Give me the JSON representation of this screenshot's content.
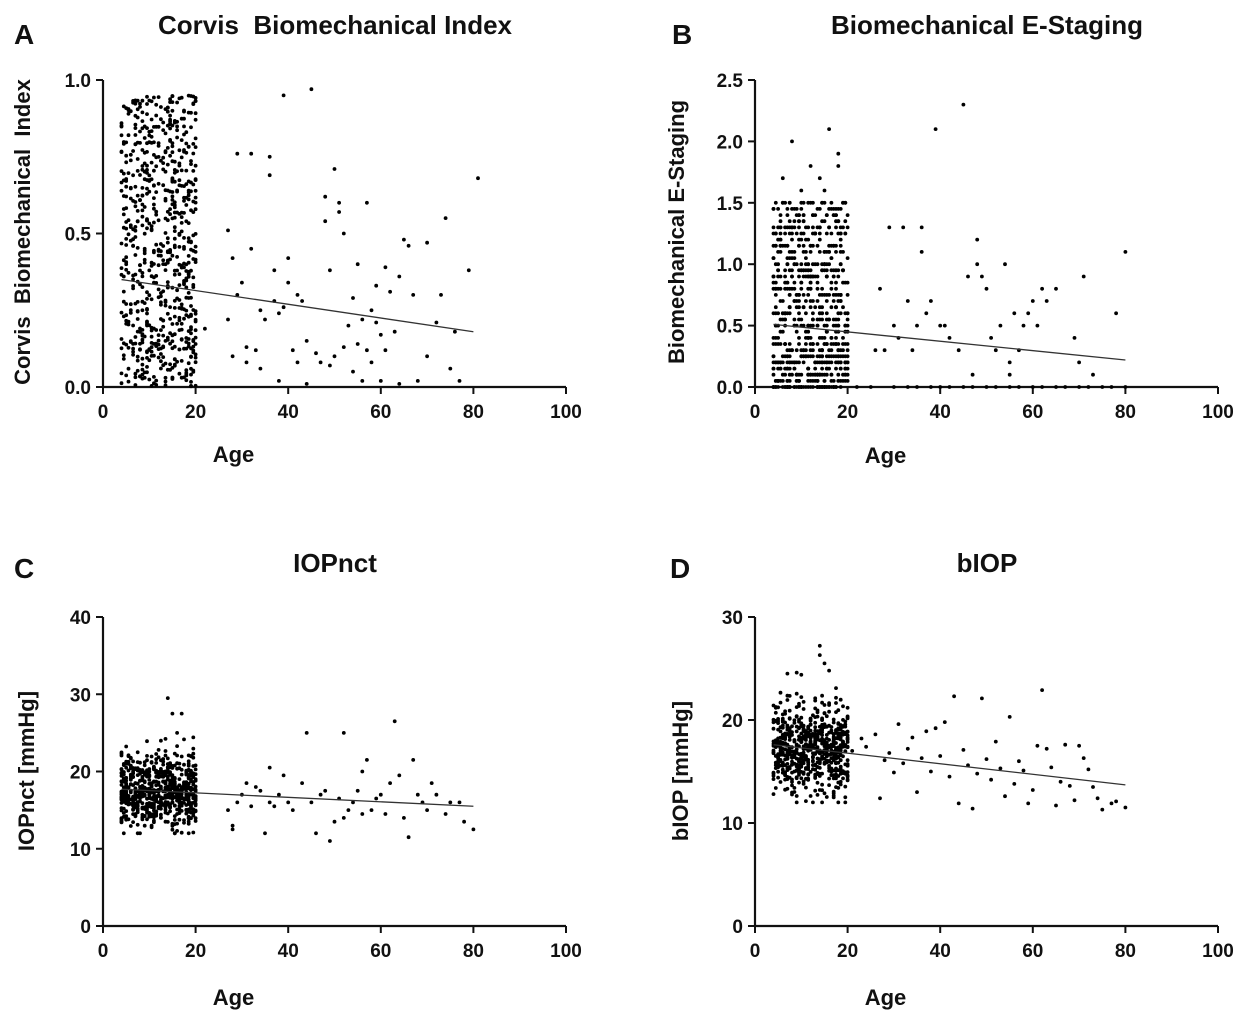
{
  "figure": {
    "panels": [
      {
        "letter": "A",
        "title": "Corvis  Biomechanical Index"
      },
      {
        "letter": "B",
        "title": "Biomechanical E-Staging"
      },
      {
        "letter": "C",
        "title": "IOPnct"
      },
      {
        "letter": "D",
        "title": "bIOP"
      }
    ]
  },
  "chart_data": [
    {
      "type": "scatter",
      "panel": "A",
      "title": "Corvis  Biomechanical Index",
      "xlabel": "Age",
      "ylabel": "Corvis  Biomechanical  Index",
      "xlim": [
        0,
        100
      ],
      "ylim": [
        0,
        1.0
      ],
      "xticks": [
        0,
        20,
        40,
        60,
        80,
        100
      ],
      "xtick_labels": [
        "0",
        "20",
        "40",
        "60",
        "80",
        "100"
      ],
      "yticks": [
        0,
        0.5,
        1.0
      ],
      "ytick_labels": [
        "0.0",
        "0.5",
        "1.0"
      ],
      "grid": false,
      "trendline": {
        "x": [
          4,
          80
        ],
        "y": [
          0.35,
          0.18
        ]
      },
      "dense_cluster": {
        "x_range": [
          4,
          20
        ],
        "y_range": [
          0.0,
          0.95
        ],
        "count": 700,
        "distribution": "uniform"
      },
      "points": [
        [
          22,
          0.19
        ],
        [
          27,
          0.22
        ],
        [
          27,
          0.51
        ],
        [
          28,
          0.42
        ],
        [
          28,
          0.1
        ],
        [
          29,
          0.76
        ],
        [
          29,
          0.3
        ],
        [
          30,
          0.34
        ],
        [
          31,
          0.13
        ],
        [
          31,
          0.08
        ],
        [
          32,
          0.45
        ],
        [
          32,
          0.76
        ],
        [
          33,
          0.12
        ],
        [
          34,
          0.25
        ],
        [
          34,
          0.06
        ],
        [
          35,
          0.22
        ],
        [
          36,
          0.75
        ],
        [
          36,
          0.69
        ],
        [
          37,
          0.38
        ],
        [
          37,
          0.28
        ],
        [
          38,
          0.24
        ],
        [
          38,
          0.02
        ],
        [
          39,
          0.95
        ],
        [
          39,
          0.26
        ],
        [
          40,
          0.42
        ],
        [
          40,
          0.34
        ],
        [
          41,
          0.12
        ],
        [
          42,
          0.3
        ],
        [
          42,
          0.08
        ],
        [
          43,
          0.28
        ],
        [
          44,
          0.15
        ],
        [
          44,
          0.01
        ],
        [
          45,
          0.97
        ],
        [
          46,
          0.11
        ],
        [
          47,
          0.08
        ],
        [
          48,
          0.54
        ],
        [
          48,
          0.62
        ],
        [
          49,
          0.07
        ],
        [
          49,
          0.38
        ],
        [
          50,
          0.71
        ],
        [
          50,
          0.1
        ],
        [
          51,
          0.57
        ],
        [
          51,
          0.6
        ],
        [
          52,
          0.13
        ],
        [
          52,
          0.5
        ],
        [
          53,
          0.2
        ],
        [
          54,
          0.29
        ],
        [
          54,
          0.05
        ],
        [
          55,
          0.14
        ],
        [
          55,
          0.4
        ],
        [
          56,
          0.22
        ],
        [
          56,
          0.02
        ],
        [
          57,
          0.6
        ],
        [
          57,
          0.12
        ],
        [
          58,
          0.08
        ],
        [
          58,
          0.25
        ],
        [
          59,
          0.21
        ],
        [
          59,
          0.33
        ],
        [
          60,
          0.02
        ],
        [
          60,
          0.17
        ],
        [
          61,
          0.39
        ],
        [
          61,
          0.12
        ],
        [
          62,
          0.31
        ],
        [
          63,
          0.18
        ],
        [
          64,
          0.36
        ],
        [
          64,
          0.01
        ],
        [
          65,
          0.48
        ],
        [
          66,
          0.46
        ],
        [
          67,
          0.3
        ],
        [
          68,
          0.02
        ],
        [
          70,
          0.47
        ],
        [
          70,
          0.1
        ],
        [
          72,
          0.21
        ],
        [
          73,
          0.3
        ],
        [
          74,
          0.55
        ],
        [
          75,
          0.06
        ],
        [
          76,
          0.18
        ],
        [
          77,
          0.02
        ],
        [
          79,
          0.38
        ],
        [
          81,
          0.68
        ]
      ]
    },
    {
      "type": "scatter",
      "panel": "B",
      "title": "Biomechanical E-Staging",
      "xlabel": "Age",
      "ylabel": "Biomechanical E-Staging",
      "xlim": [
        0,
        100
      ],
      "ylim": [
        0,
        2.5
      ],
      "xticks": [
        0,
        20,
        40,
        60,
        80,
        100
      ],
      "xtick_labels": [
        "0",
        "20",
        "40",
        "60",
        "80",
        "100"
      ],
      "yticks": [
        0,
        0.5,
        1.0,
        1.5,
        2.0,
        2.5
      ],
      "ytick_labels": [
        "0.0",
        "0.5",
        "1.0",
        "1.5",
        "2.0",
        "2.5"
      ],
      "grid": false,
      "trendline": {
        "x": [
          4,
          80
        ],
        "y": [
          0.51,
          0.22
        ]
      },
      "dense_cluster": {
        "x_range": [
          4,
          20
        ],
        "y_range": [
          0.0,
          1.5
        ],
        "count": 700,
        "distribution": "lattice",
        "y_step": 0.05
      },
      "points": [
        [
          8,
          2.0
        ],
        [
          16,
          2.1
        ],
        [
          12,
          1.8
        ],
        [
          14,
          1.7
        ],
        [
          18,
          1.9
        ],
        [
          10,
          1.6
        ],
        [
          6,
          1.7
        ],
        [
          7,
          1.4
        ],
        [
          15,
          1.6
        ],
        [
          18,
          1.8
        ],
        [
          26,
          0.3
        ],
        [
          27,
          0.8
        ],
        [
          28,
          0.3
        ],
        [
          29,
          1.3
        ],
        [
          30,
          0.5
        ],
        [
          31,
          0.4
        ],
        [
          32,
          1.3
        ],
        [
          33,
          0.7
        ],
        [
          34,
          0.3
        ],
        [
          35,
          0.5
        ],
        [
          36,
          1.3
        ],
        [
          36,
          1.1
        ],
        [
          37,
          0.6
        ],
        [
          38,
          0.7
        ],
        [
          39,
          2.1
        ],
        [
          40,
          0.5
        ],
        [
          41,
          0.5
        ],
        [
          42,
          0.4
        ],
        [
          44,
          0.3
        ],
        [
          45,
          2.3
        ],
        [
          46,
          0.9
        ],
        [
          47,
          0.1
        ],
        [
          48,
          1.0
        ],
        [
          48,
          1.2
        ],
        [
          49,
          0.9
        ],
        [
          50,
          0.8
        ],
        [
          51,
          0.4
        ],
        [
          52,
          0.3
        ],
        [
          53,
          0.5
        ],
        [
          54,
          1.0
        ],
        [
          55,
          0.2
        ],
        [
          55,
          0.1
        ],
        [
          56,
          0.6
        ],
        [
          57,
          0.3
        ],
        [
          58,
          0.5
        ],
        [
          59,
          0.6
        ],
        [
          60,
          0.7
        ],
        [
          61,
          0.5
        ],
        [
          62,
          0.8
        ],
        [
          63,
          0.7
        ],
        [
          65,
          0.8
        ],
        [
          69,
          0.4
        ],
        [
          70,
          0.2
        ],
        [
          71,
          0.9
        ],
        [
          73,
          0.1
        ],
        [
          78,
          0.6
        ],
        [
          80,
          1.1
        ],
        [
          22,
          0
        ],
        [
          25,
          0
        ],
        [
          30,
          0
        ],
        [
          33,
          0
        ],
        [
          35,
          0
        ],
        [
          38,
          0
        ],
        [
          40,
          0
        ],
        [
          42,
          0
        ],
        [
          45,
          0
        ],
        [
          47,
          0
        ],
        [
          50,
          0
        ],
        [
          52,
          0
        ],
        [
          55,
          0
        ],
        [
          57,
          0
        ],
        [
          60,
          0
        ],
        [
          62,
          0
        ],
        [
          65,
          0
        ],
        [
          67,
          0
        ],
        [
          70,
          0
        ],
        [
          72,
          0
        ],
        [
          75,
          0
        ],
        [
          77,
          0
        ],
        [
          80,
          0
        ]
      ]
    },
    {
      "type": "scatter",
      "panel": "C",
      "title": "IOPnct",
      "xlabel": "Age",
      "ylabel": "IOPnct [mmHg]",
      "xlim": [
        0,
        100
      ],
      "ylim": [
        0,
        40
      ],
      "xticks": [
        0,
        20,
        40,
        60,
        80,
        100
      ],
      "xtick_labels": [
        "0",
        "20",
        "40",
        "60",
        "80",
        "100"
      ],
      "yticks": [
        0,
        10,
        20,
        30,
        40
      ],
      "ytick_labels": [
        "0",
        "10",
        "20",
        "30",
        "40"
      ],
      "grid": false,
      "trendline": {
        "x": [
          4,
          80
        ],
        "y": [
          17.7,
          15.5
        ]
      },
      "dense_cluster": {
        "x_range": [
          4,
          20
        ],
        "y_range": [
          12,
          25
        ],
        "count": 700,
        "distribution": "normal",
        "y_mean": 17.5,
        "y_sd": 2.3
      },
      "points": [
        [
          14,
          29.5
        ],
        [
          15,
          27.5
        ],
        [
          17,
          27.5
        ],
        [
          20,
          19
        ],
        [
          27,
          15
        ],
        [
          28,
          12.5
        ],
        [
          28,
          13
        ],
        [
          29,
          16
        ],
        [
          30,
          17
        ],
        [
          31,
          18.5
        ],
        [
          32,
          15.5
        ],
        [
          33,
          18
        ],
        [
          34,
          17.5
        ],
        [
          35,
          12
        ],
        [
          36,
          20.5
        ],
        [
          36,
          16
        ],
        [
          37,
          15.5
        ],
        [
          38,
          17
        ],
        [
          39,
          19.5
        ],
        [
          40,
          16
        ],
        [
          41,
          15
        ],
        [
          43,
          18.5
        ],
        [
          44,
          25
        ],
        [
          45,
          16
        ],
        [
          46,
          12
        ],
        [
          47,
          17
        ],
        [
          48,
          17.5
        ],
        [
          49,
          11
        ],
        [
          50,
          13.5
        ],
        [
          51,
          16.5
        ],
        [
          52,
          25
        ],
        [
          52,
          14
        ],
        [
          53,
          15
        ],
        [
          54,
          16
        ],
        [
          55,
          17.5
        ],
        [
          56,
          20
        ],
        [
          56,
          14.5
        ],
        [
          57,
          21.5
        ],
        [
          58,
          15
        ],
        [
          59,
          16.5
        ],
        [
          60,
          17
        ],
        [
          61,
          14.5
        ],
        [
          62,
          18.5
        ],
        [
          63,
          26.5
        ],
        [
          64,
          19.5
        ],
        [
          65,
          14
        ],
        [
          66,
          11.5
        ],
        [
          67,
          21.5
        ],
        [
          68,
          17
        ],
        [
          69,
          16
        ],
        [
          70,
          15
        ],
        [
          71,
          18.5
        ],
        [
          72,
          17
        ],
        [
          74,
          14.5
        ],
        [
          75,
          16
        ],
        [
          77,
          16
        ],
        [
          78,
          13.5
        ],
        [
          80,
          12.5
        ]
      ]
    },
    {
      "type": "scatter",
      "panel": "D",
      "title": "bIOP",
      "xlabel": "Age",
      "ylabel": "bIOP [mmHg]",
      "xlim": [
        0,
        100
      ],
      "ylim": [
        0,
        30
      ],
      "xticks": [
        0,
        20,
        40,
        60,
        80,
        100
      ],
      "xtick_labels": [
        "0",
        "20",
        "40",
        "60",
        "80",
        "100"
      ],
      "yticks": [
        0,
        10,
        20,
        30
      ],
      "ytick_labels": [
        "0",
        "10",
        "20",
        "30"
      ],
      "grid": false,
      "trendline": {
        "x": [
          4,
          80
        ],
        "y": [
          17.6,
          13.7
        ]
      },
      "dense_cluster": {
        "x_range": [
          4,
          20
        ],
        "y_range": [
          12,
          24.5
        ],
        "count": 700,
        "distribution": "normal",
        "y_mean": 17.3,
        "y_sd": 2.2
      },
      "points": [
        [
          14,
          27.2
        ],
        [
          14,
          26.3
        ],
        [
          15,
          25.5
        ],
        [
          16,
          24.8
        ],
        [
          7,
          24.5
        ],
        [
          9,
          24.6
        ],
        [
          21,
          17
        ],
        [
          23,
          18.2
        ],
        [
          24,
          17.4
        ],
        [
          26,
          18.6
        ],
        [
          27,
          12.4
        ],
        [
          28,
          16.1
        ],
        [
          29,
          16.8
        ],
        [
          30,
          14.9
        ],
        [
          31,
          19.6
        ],
        [
          32,
          15.8
        ],
        [
          33,
          17.2
        ],
        [
          34,
          18.3
        ],
        [
          35,
          13
        ],
        [
          36,
          16.3
        ],
        [
          37,
          18.9
        ],
        [
          38,
          15
        ],
        [
          39,
          19.2
        ],
        [
          40,
          16.5
        ],
        [
          41,
          19.8
        ],
        [
          42,
          14.5
        ],
        [
          43,
          22.3
        ],
        [
          44,
          11.9
        ],
        [
          45,
          17.1
        ],
        [
          46,
          15.6
        ],
        [
          47,
          11.4
        ],
        [
          48,
          14.8
        ],
        [
          49,
          22.1
        ],
        [
          50,
          16.2
        ],
        [
          51,
          14.2
        ],
        [
          52,
          17.9
        ],
        [
          53,
          15.3
        ],
        [
          54,
          12.6
        ],
        [
          55,
          20.3
        ],
        [
          56,
          13.8
        ],
        [
          57,
          16
        ],
        [
          58,
          15.1
        ],
        [
          59,
          11.9
        ],
        [
          60,
          13.2
        ],
        [
          61,
          17.5
        ],
        [
          62,
          22.9
        ],
        [
          63,
          17.2
        ],
        [
          64,
          15.4
        ],
        [
          65,
          11.7
        ],
        [
          66,
          14
        ],
        [
          67,
          17.6
        ],
        [
          68,
          13.6
        ],
        [
          69,
          12.2
        ],
        [
          70,
          17.5
        ],
        [
          71,
          16.3
        ],
        [
          72,
          15.2
        ],
        [
          73,
          13.5
        ],
        [
          74,
          12.4
        ],
        [
          75,
          11.3
        ],
        [
          77,
          11.9
        ],
        [
          78,
          12.1
        ],
        [
          80,
          11.5
        ]
      ]
    }
  ]
}
